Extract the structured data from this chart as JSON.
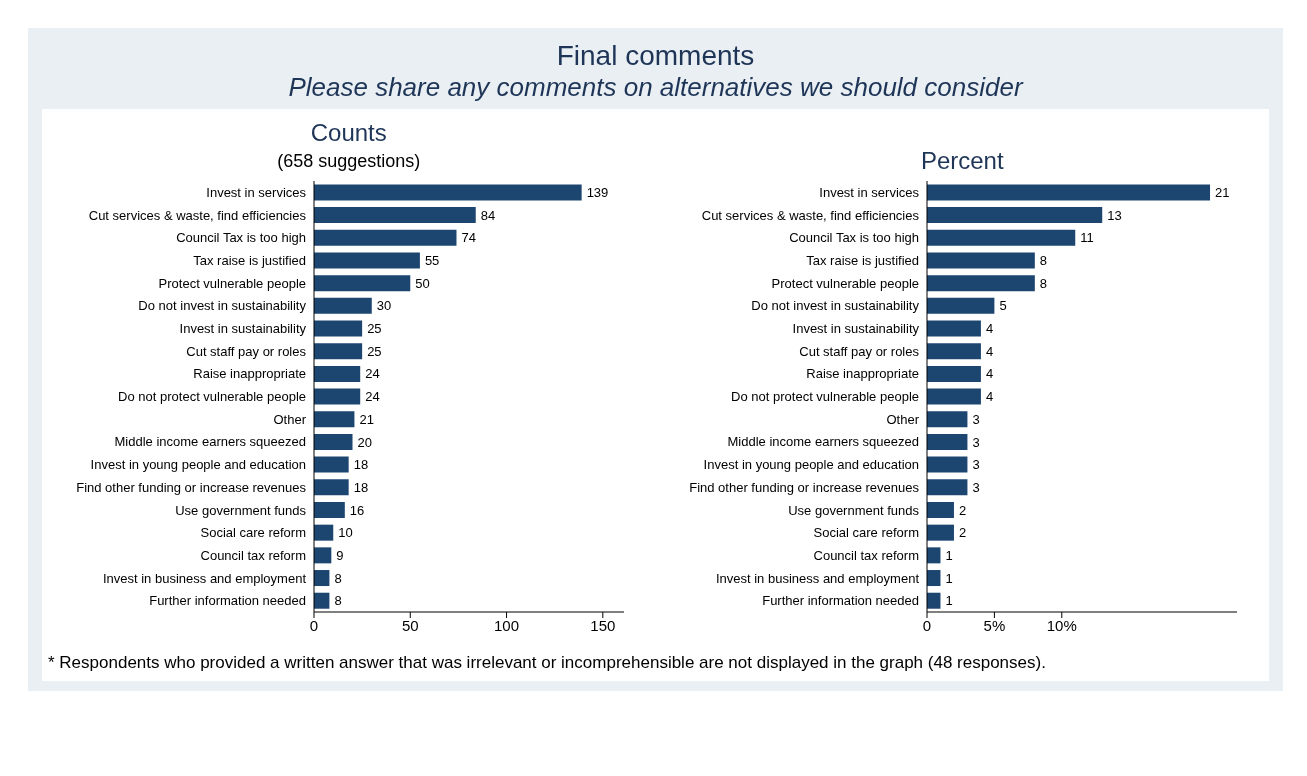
{
  "chart_data": [
    {
      "type": "other",
      "title": "Final comments",
      "subtitle": "Please share any comments on alternatives we should consider",
      "annotations": [
        "* Respondents who provided a written answer that was irrelevant or incomprehensible are not displayed in the graph (48 responses)."
      ]
    },
    {
      "type": "bar",
      "orientation": "horizontal",
      "title": "Counts",
      "subtitle": "(658 suggestions)",
      "categories": [
        "Invest in services",
        "Cut services & waste, find efficiencies",
        "Council Tax is too high",
        "Tax raise is justified",
        "Protect vulnerable people",
        "Do not invest in sustainability",
        "Invest in sustainability",
        "Cut staff pay or roles",
        "Raise inappropriate",
        "Do not protect vulnerable people",
        "Other",
        "Middle income earners squeezed",
        "Invest in young people and education",
        "Find other funding or increase revenues",
        "Use government funds",
        "Social care reform",
        "Council tax reform",
        "Invest in business and employment",
        "Further information needed"
      ],
      "values": [
        139,
        84,
        74,
        55,
        50,
        30,
        25,
        25,
        24,
        24,
        21,
        20,
        18,
        18,
        16,
        10,
        9,
        8,
        8
      ],
      "color": "#1c4570",
      "xlim": [
        0,
        161
      ],
      "xticks": [
        0,
        50,
        100,
        150
      ],
      "data_labels": true
    },
    {
      "type": "bar",
      "orientation": "horizontal",
      "title": "Percent",
      "categories": [
        "Invest in services",
        "Cut services & waste, find efficiencies",
        "Council Tax is too high",
        "Tax raise is justified",
        "Protect vulnerable people",
        "Do not invest in sustainability",
        "Invest in sustainability",
        "Cut staff pay or roles",
        "Raise inappropriate",
        "Do not protect vulnerable people",
        "Other",
        "Middle income earners squeezed",
        "Invest in young people and education",
        "Find other funding or increase revenues",
        "Use government funds",
        "Social care reform",
        "Council tax reform",
        "Invest in business and employment",
        "Further information needed"
      ],
      "values": [
        21,
        13,
        11,
        8,
        8,
        5,
        4,
        4,
        4,
        4,
        3,
        3,
        3,
        3,
        2,
        2,
        1,
        1,
        1
      ],
      "color": "#1c4570",
      "xlim": [
        0,
        23
      ],
      "xticks": [
        0,
        {
          "value": 5,
          "label": "5%"
        },
        {
          "value": 10,
          "label": "10%"
        }
      ],
      "data_labels": true
    }
  ]
}
